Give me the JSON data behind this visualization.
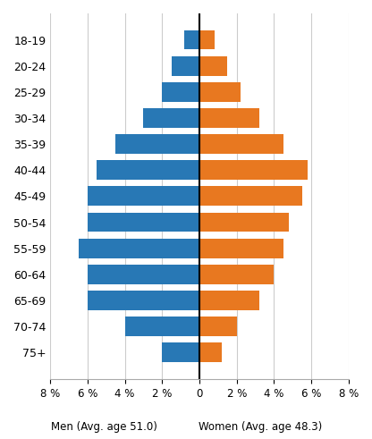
{
  "age_groups": [
    "18-19",
    "20-24",
    "25-29",
    "30-34",
    "35-39",
    "40-44",
    "45-49",
    "50-54",
    "55-59",
    "60-64",
    "65-69",
    "70-74",
    "75+"
  ],
  "men_values": [
    0.8,
    1.5,
    2.0,
    3.0,
    4.5,
    5.5,
    6.0,
    6.0,
    6.5,
    6.0,
    6.0,
    4.0,
    2.0
  ],
  "women_values": [
    0.8,
    1.5,
    2.2,
    3.2,
    4.5,
    5.8,
    5.5,
    4.8,
    4.5,
    4.0,
    3.2,
    2.0,
    1.2
  ],
  "men_color": "#2878b5",
  "women_color": "#e87820",
  "xticks": [
    -8,
    -6,
    -4,
    -2,
    0,
    2,
    4,
    6,
    8
  ],
  "xtick_labels": [
    "8 %",
    "6 %",
    "4 %",
    "2 %",
    "0",
    "2 %",
    "4 %",
    "6 %",
    "8 %"
  ],
  "men_label": "Men (Avg. age 51.0)",
  "women_label": "Women (Avg. age 48.3)",
  "background_color": "#ffffff",
  "grid_color": "#cccccc",
  "bar_height": 0.75,
  "label_fontsize": 9,
  "tick_fontsize": 8.5
}
